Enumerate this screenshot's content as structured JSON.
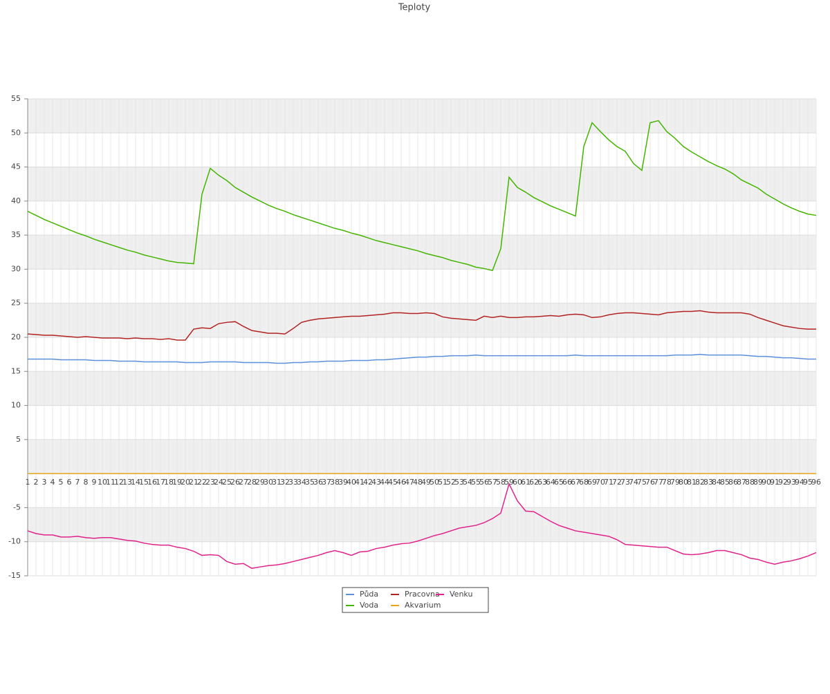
{
  "chart_data": {
    "type": "line",
    "title": "Teploty",
    "categories": [
      "1",
      "2",
      "3",
      "4",
      "5",
      "6",
      "7",
      "8",
      "9",
      "10",
      "11",
      "12",
      "13",
      "14",
      "15",
      "16",
      "17",
      "18",
      "19",
      "20",
      "21",
      "22",
      "23",
      "24",
      "25",
      "26",
      "27",
      "28",
      "29",
      "30",
      "31",
      "32",
      "33",
      "34",
      "35",
      "36",
      "37",
      "38",
      "39",
      "40",
      "41",
      "42",
      "43",
      "44",
      "45",
      "46",
      "47",
      "48",
      "49",
      "50",
      "51",
      "52",
      "53",
      "54",
      "55",
      "56",
      "57",
      "58",
      "59",
      "60",
      "61",
      "62",
      "63",
      "64",
      "65",
      "66",
      "67",
      "68",
      "69",
      "70",
      "71",
      "72",
      "73",
      "74",
      "75",
      "76",
      "77",
      "78",
      "79",
      "80",
      "81",
      "82",
      "83",
      "84",
      "85",
      "86",
      "87",
      "88",
      "89",
      "90",
      "91",
      "92",
      "93",
      "94",
      "95",
      "96"
    ],
    "series": [
      {
        "name": "Půda",
        "color": "#5b8fd9",
        "values": [
          16.8,
          16.8,
          16.8,
          16.8,
          16.7,
          16.7,
          16.7,
          16.7,
          16.6,
          16.6,
          16.6,
          16.5,
          16.5,
          16.5,
          16.4,
          16.4,
          16.4,
          16.4,
          16.4,
          16.3,
          16.3,
          16.3,
          16.4,
          16.4,
          16.4,
          16.4,
          16.3,
          16.3,
          16.3,
          16.3,
          16.2,
          16.2,
          16.3,
          16.3,
          16.4,
          16.4,
          16.5,
          16.5,
          16.5,
          16.6,
          16.6,
          16.6,
          16.7,
          16.7,
          16.8,
          16.9,
          17.0,
          17.1,
          17.1,
          17.2,
          17.2,
          17.3,
          17.3,
          17.3,
          17.4,
          17.3,
          17.3,
          17.3,
          17.3,
          17.3,
          17.3,
          17.3,
          17.3,
          17.3,
          17.3,
          17.3,
          17.4,
          17.3,
          17.3,
          17.3,
          17.3,
          17.3,
          17.3,
          17.3,
          17.3,
          17.3,
          17.3,
          17.3,
          17.4,
          17.4,
          17.4,
          17.5,
          17.4,
          17.4,
          17.4,
          17.4,
          17.4,
          17.3,
          17.2,
          17.2,
          17.1,
          17.0,
          17.0,
          16.9,
          16.8,
          16.8
        ]
      },
      {
        "name": "Voda",
        "color": "#44b400",
        "values": [
          38.5,
          37.9,
          37.3,
          36.8,
          36.3,
          35.8,
          35.3,
          34.9,
          34.4,
          34.0,
          33.6,
          33.2,
          32.8,
          32.5,
          32.1,
          31.8,
          31.5,
          31.2,
          31.0,
          30.9,
          30.8,
          41.0,
          44.8,
          43.8,
          43.0,
          42.0,
          41.3,
          40.6,
          40.0,
          39.4,
          38.9,
          38.5,
          38.0,
          37.6,
          37.2,
          36.8,
          36.4,
          36.0,
          35.7,
          35.3,
          35.0,
          34.6,
          34.2,
          33.9,
          33.6,
          33.3,
          33.0,
          32.7,
          32.3,
          32.0,
          31.7,
          31.3,
          31.0,
          30.7,
          30.3,
          30.1,
          29.8,
          33.0,
          43.5,
          42.0,
          41.3,
          40.5,
          39.9,
          39.3,
          38.8,
          38.3,
          37.8,
          48.0,
          51.5,
          50.2,
          49.0,
          48.0,
          47.3,
          45.5,
          44.5,
          51.5,
          51.8,
          50.2,
          49.2,
          48.0,
          47.2,
          46.5,
          45.8,
          45.2,
          44.7,
          44.0,
          43.1,
          42.5,
          41.9,
          41.0,
          40.3,
          39.6,
          39.0,
          38.5,
          38.1,
          37.9
        ]
      },
      {
        "name": "Pracovna",
        "color": "#b22222",
        "values": [
          20.5,
          20.4,
          20.3,
          20.3,
          20.2,
          20.1,
          20.0,
          20.1,
          20.0,
          19.9,
          19.9,
          19.9,
          19.8,
          19.9,
          19.8,
          19.8,
          19.7,
          19.8,
          19.6,
          19.6,
          21.2,
          21.4,
          21.3,
          22.0,
          22.2,
          22.3,
          21.6,
          21.0,
          20.8,
          20.6,
          20.6,
          20.5,
          21.3,
          22.2,
          22.5,
          22.7,
          22.8,
          22.9,
          23.0,
          23.1,
          23.1,
          23.2,
          23.3,
          23.4,
          23.6,
          23.6,
          23.5,
          23.5,
          23.6,
          23.5,
          23.0,
          22.8,
          22.7,
          22.6,
          22.5,
          23.1,
          22.9,
          23.1,
          22.9,
          22.9,
          23.0,
          23.0,
          23.1,
          23.2,
          23.1,
          23.3,
          23.4,
          23.3,
          22.9,
          23.0,
          23.3,
          23.5,
          23.6,
          23.6,
          23.5,
          23.4,
          23.3,
          23.6,
          23.7,
          23.8,
          23.8,
          23.9,
          23.7,
          23.6,
          23.6,
          23.6,
          23.6,
          23.4,
          22.9,
          22.5,
          22.1,
          21.7,
          21.5,
          21.3,
          21.2,
          21.2
        ]
      },
      {
        "name": "Akvarium",
        "color": "#e8a317",
        "values": [
          0,
          0,
          0,
          0,
          0,
          0,
          0,
          0,
          0,
          0,
          0,
          0,
          0,
          0,
          0,
          0,
          0,
          0,
          0,
          0,
          0,
          0,
          0,
          0,
          0,
          0,
          0,
          0,
          0,
          0,
          0,
          0,
          0,
          0,
          0,
          0,
          0,
          0,
          0,
          0,
          0,
          0,
          0,
          0,
          0,
          0,
          0,
          0,
          0,
          0,
          0,
          0,
          0,
          0,
          0,
          0,
          0,
          0,
          0,
          0,
          0,
          0,
          0,
          0,
          0,
          0,
          0,
          0,
          0,
          0,
          0,
          0,
          0,
          0,
          0,
          0,
          0,
          0,
          0,
          0,
          0,
          0,
          0,
          0,
          0,
          0,
          0,
          0,
          0,
          0,
          0,
          0,
          0,
          0,
          0,
          0
        ]
      },
      {
        "name": "Venku",
        "color": "#e0218a",
        "values": [
          -8.4,
          -8.8,
          -9.0,
          -9.0,
          -9.3,
          -9.3,
          -9.2,
          -9.4,
          -9.5,
          -9.4,
          -9.4,
          -9.6,
          -9.8,
          -9.9,
          -10.2,
          -10.4,
          -10.5,
          -10.5,
          -10.8,
          -11.0,
          -11.4,
          -12.0,
          -11.9,
          -12.0,
          -12.9,
          -13.3,
          -13.2,
          -13.9,
          -13.7,
          -13.5,
          -13.4,
          -13.2,
          -12.9,
          -12.6,
          -12.3,
          -12.0,
          -11.6,
          -11.3,
          -11.6,
          -12.0,
          -11.5,
          -11.4,
          -11.0,
          -10.8,
          -10.5,
          -10.3,
          -10.2,
          -9.9,
          -9.5,
          -9.1,
          -8.8,
          -8.4,
          -8.0,
          -7.8,
          -7.6,
          -7.2,
          -6.6,
          -5.8,
          -1.5,
          -4.0,
          -5.5,
          -5.6,
          -6.3,
          -7.0,
          -7.6,
          -8.0,
          -8.4,
          -8.6,
          -8.8,
          -9.0,
          -9.2,
          -9.7,
          -10.4,
          -10.5,
          -10.6,
          -10.7,
          -10.8,
          -10.8,
          -11.3,
          -11.8,
          -11.9,
          -11.8,
          -11.6,
          -11.3,
          -11.3,
          -11.6,
          -11.9,
          -12.4,
          -12.6,
          -13.0,
          -13.3,
          -13.0,
          -12.8,
          -12.5,
          -12.1,
          -11.6
        ]
      }
    ],
    "ylim": [
      -15,
      55
    ],
    "yticks": [
      -15,
      -10,
      -5,
      5,
      10,
      15,
      20,
      25,
      30,
      35,
      40,
      45,
      50,
      55
    ],
    "grid": true
  }
}
